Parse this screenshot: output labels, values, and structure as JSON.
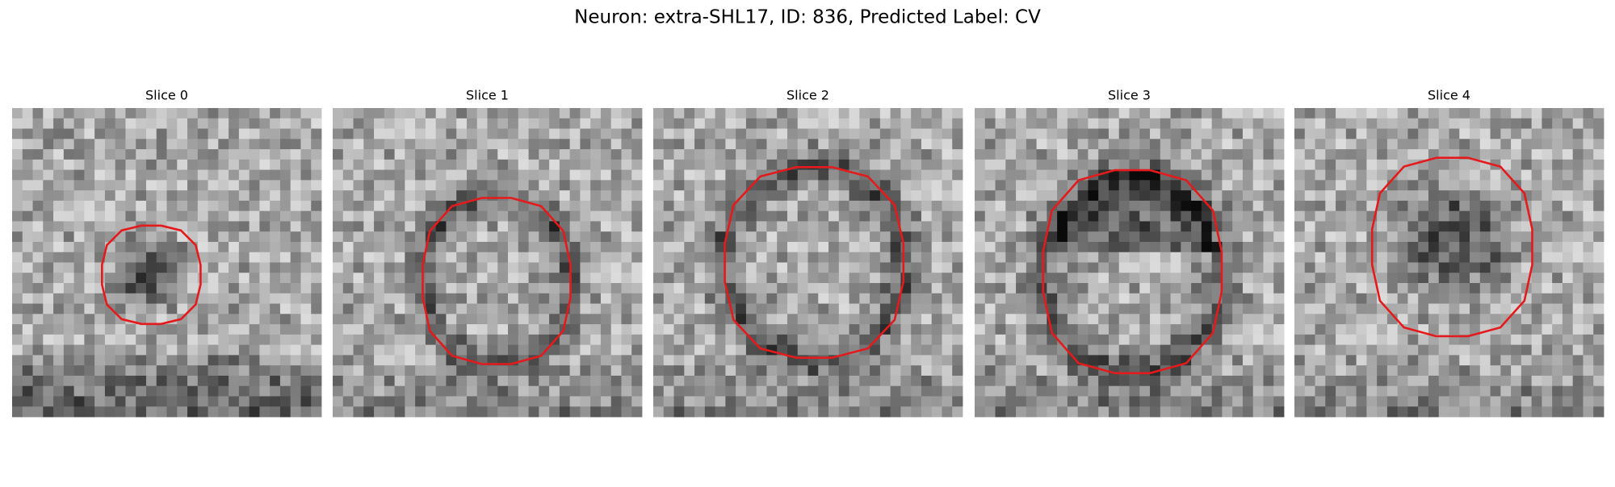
{
  "title": "Neuron: extra-SHL17, ID: 836, Predicted Label: CV",
  "panels": [
    {
      "title": "Slice 0"
    },
    {
      "title": "Slice 1"
    },
    {
      "title": "Slice 2"
    },
    {
      "title": "Slice 3"
    },
    {
      "title": "Slice 4"
    }
  ]
}
